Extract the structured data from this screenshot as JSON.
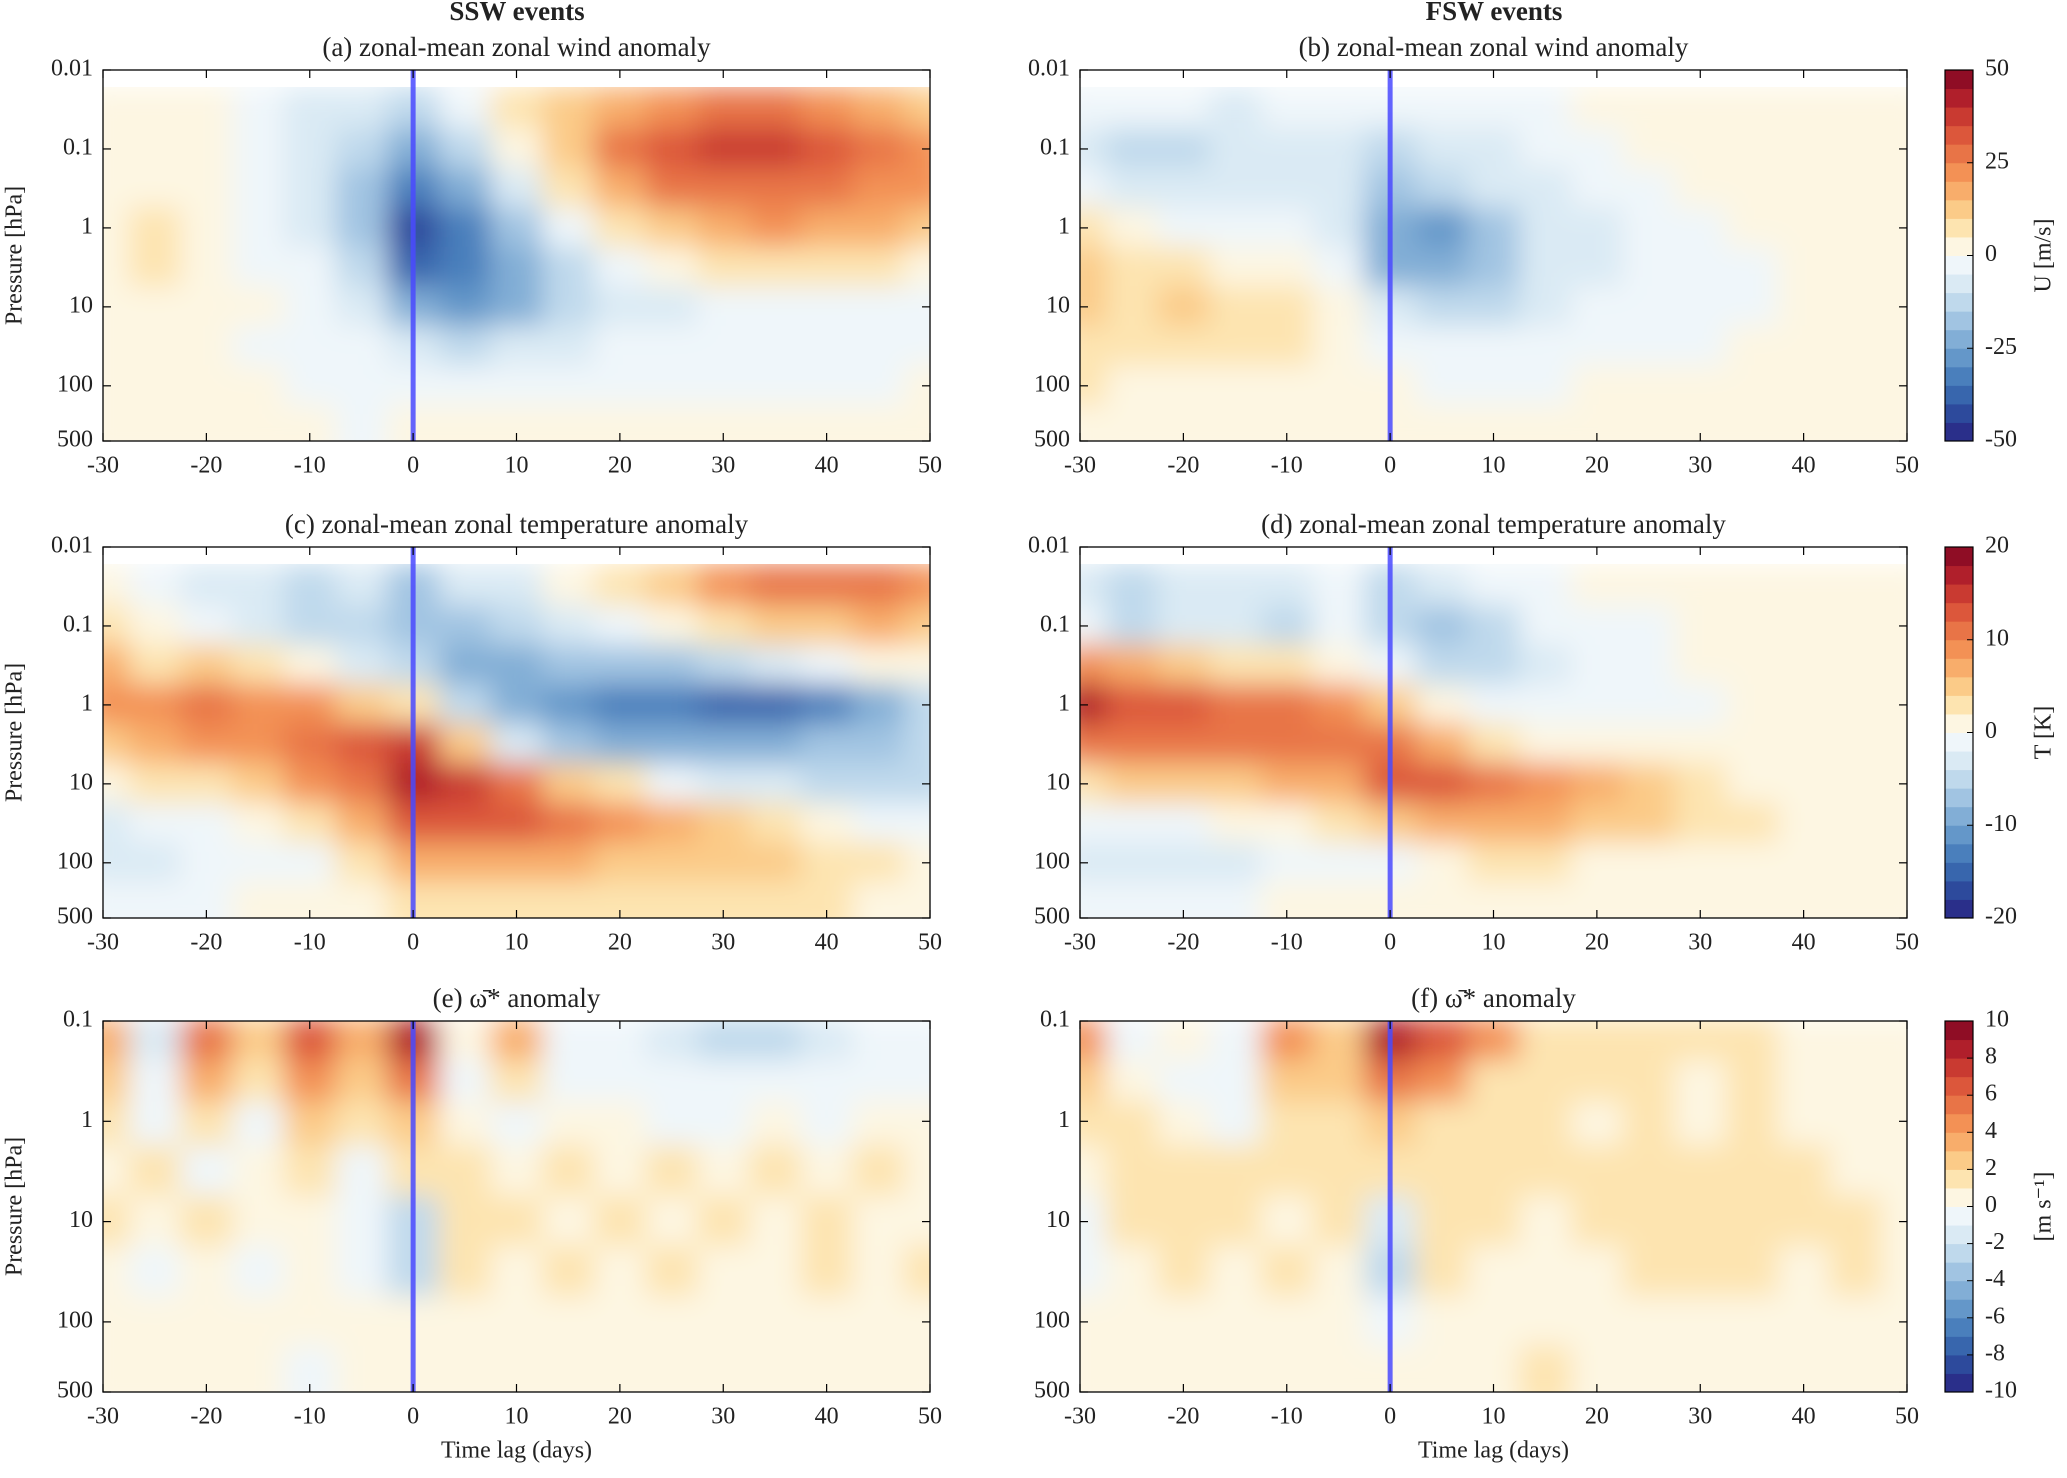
{
  "column_titles": [
    "SSW events",
    "FSW events"
  ],
  "colormap": [
    "#2a2f8a",
    "#2d4a9c",
    "#3866ad",
    "#4a7fbc",
    "#6497c9",
    "#82aed6",
    "#a1c4e2",
    "#bfd9ec",
    "#daeaf4",
    "#eff6fa",
    "#fdf6e2",
    "#fde4b0",
    "#fbcb88",
    "#f8ad6b",
    "#f39155",
    "#e87447",
    "#dc573b",
    "#c93a31",
    "#b01f2b",
    "#8f0d25"
  ],
  "chart_data": [
    {
      "type": "contour",
      "title": "(a) zonal-mean zonal wind anomaly",
      "ylabel": "Pressure [hPa]",
      "log_y": true,
      "vline": 0,
      "vline_color": "#4a4aff",
      "xlim": [
        -30,
        50
      ],
      "xticks": [
        -30,
        -20,
        -10,
        0,
        10,
        20,
        30,
        40,
        50
      ],
      "ylim": [
        500,
        0.01
      ],
      "yticks": [
        0.01,
        0.1,
        1,
        10,
        100,
        500
      ],
      "x": [
        -30,
        -25,
        -20,
        -15,
        -10,
        -5,
        0,
        5,
        10,
        15,
        20,
        25,
        30,
        35,
        40,
        45,
        50
      ],
      "y": [
        0.03,
        0.1,
        0.3,
        1,
        3,
        10,
        30,
        100,
        300
      ],
      "z": [
        [
          0,
          2,
          0,
          -5,
          -8,
          -10,
          -15,
          -5,
          5,
          12,
          18,
          22,
          25,
          25,
          22,
          15,
          12
        ],
        [
          0,
          3,
          0,
          -5,
          -10,
          -15,
          -25,
          -15,
          0,
          12,
          25,
          30,
          35,
          38,
          30,
          25,
          20
        ],
        [
          2,
          3,
          0,
          -5,
          -10,
          -20,
          -35,
          -25,
          -8,
          5,
          18,
          25,
          28,
          28,
          25,
          22,
          20
        ],
        [
          3,
          5,
          2,
          -3,
          -8,
          -20,
          -42,
          -32,
          -18,
          -5,
          5,
          12,
          18,
          20,
          18,
          15,
          12
        ],
        [
          3,
          5,
          3,
          -2,
          -5,
          -15,
          -40,
          -32,
          -22,
          -12,
          -3,
          3,
          5,
          5,
          5,
          5,
          3
        ],
        [
          2,
          4,
          2,
          0,
          -3,
          -10,
          -25,
          -28,
          -22,
          -15,
          -10,
          -8,
          -5,
          -5,
          -5,
          -3,
          -2
        ],
        [
          0,
          1,
          0,
          -1,
          -2,
          -5,
          -10,
          -12,
          -10,
          -8,
          -5,
          -3,
          -3,
          -3,
          -3,
          -2,
          -2
        ],
        [
          0,
          0,
          0,
          0,
          -1,
          -2,
          -3,
          -3,
          -3,
          -2,
          -2,
          -1,
          -1,
          -1,
          -1,
          -1,
          0
        ],
        [
          0,
          0,
          0,
          0,
          0,
          -1,
          0,
          1,
          1,
          1,
          1,
          1,
          1,
          0,
          1,
          0,
          0
        ]
      ]
    },
    {
      "type": "contour",
      "title": "(b) zonal-mean zonal wind anomaly",
      "log_y": true,
      "vline": 0,
      "vline_color": "#4a4aff",
      "xlim": [
        -30,
        50
      ],
      "xticks": [
        -30,
        -20,
        -10,
        0,
        10,
        20,
        30,
        40,
        50
      ],
      "ylim": [
        500,
        0.01
      ],
      "yticks": [
        0.01,
        0.1,
        1,
        10,
        100,
        500
      ],
      "x": [
        -30,
        -25,
        -20,
        -15,
        -10,
        -5,
        0,
        5,
        10,
        15,
        20,
        25,
        30,
        35,
        40,
        45,
        50
      ],
      "y": [
        0.03,
        0.1,
        0.3,
        1,
        3,
        10,
        30,
        100,
        300
      ],
      "z": [
        [
          -5,
          -5,
          -5,
          -8,
          -5,
          -5,
          -5,
          -3,
          -2,
          -2,
          0,
          2,
          2,
          2,
          2,
          2,
          2
        ],
        [
          -8,
          -12,
          -12,
          -10,
          -8,
          -10,
          -12,
          -10,
          -8,
          -5,
          -3,
          0,
          2,
          2,
          2,
          2,
          2
        ],
        [
          -5,
          -10,
          -10,
          -8,
          -8,
          -10,
          -18,
          -15,
          -10,
          -8,
          -5,
          -2,
          0,
          2,
          2,
          2,
          2
        ],
        [
          5,
          0,
          -2,
          -3,
          -5,
          -10,
          -25,
          -28,
          -18,
          -10,
          -8,
          -5,
          -3,
          0,
          1,
          1,
          1
        ],
        [
          10,
          5,
          5,
          3,
          0,
          -5,
          -22,
          -25,
          -18,
          -10,
          -8,
          -5,
          -3,
          -1,
          0,
          0,
          0
        ],
        [
          12,
          8,
          12,
          8,
          5,
          3,
          -10,
          -15,
          -12,
          -8,
          -5,
          -5,
          -3,
          -1,
          0,
          0,
          0
        ],
        [
          8,
          6,
          6,
          5,
          5,
          3,
          -3,
          -5,
          -5,
          -3,
          -3,
          -2,
          -1,
          0,
          0,
          0,
          0
        ],
        [
          5,
          4,
          4,
          3,
          3,
          2,
          0,
          -1,
          -1,
          -1,
          0,
          0,
          0,
          0,
          0,
          0,
          0
        ],
        [
          2,
          2,
          1,
          1,
          1,
          1,
          0,
          0,
          1,
          1,
          1,
          1,
          0,
          1,
          0,
          1,
          0
        ]
      ],
      "colorbar": {
        "label": "U [m/s]",
        "lim": [
          -50,
          50
        ],
        "ticks": [
          -50,
          -25,
          0,
          25,
          50
        ]
      }
    },
    {
      "type": "contour",
      "title": "(c) zonal-mean zonal temperature anomaly",
      "ylabel": "Pressure [hPa]",
      "log_y": true,
      "vline": 0,
      "vline_color": "#4a4aff",
      "xlim": [
        -30,
        50
      ],
      "xticks": [
        -30,
        -20,
        -10,
        0,
        10,
        20,
        30,
        40,
        50
      ],
      "ylim": [
        500,
        0.01
      ],
      "yticks": [
        0.01,
        0.1,
        1,
        10,
        100,
        500
      ],
      "x": [
        -30,
        -25,
        -20,
        -15,
        -10,
        -5,
        0,
        5,
        10,
        15,
        20,
        25,
        30,
        35,
        40,
        45,
        50
      ],
      "y": [
        0.03,
        0.1,
        0.3,
        1,
        3,
        10,
        30,
        100,
        300
      ],
      "z": [
        [
          0,
          -2,
          -3,
          -3,
          -5,
          -3,
          -8,
          -3,
          -3,
          0,
          2,
          5,
          8,
          10,
          10,
          10,
          8
        ],
        [
          3,
          0,
          -2,
          -3,
          -5,
          -5,
          -8,
          -8,
          -5,
          -3,
          -2,
          0,
          2,
          4,
          5,
          6,
          5
        ],
        [
          6,
          3,
          5,
          2,
          0,
          -3,
          -5,
          -10,
          -10,
          -8,
          -8,
          -7,
          -5,
          -3,
          -2,
          0,
          1
        ],
        [
          8,
          8,
          10,
          9,
          8,
          5,
          2,
          -5,
          -10,
          -12,
          -14,
          -14,
          -16,
          -16,
          -13,
          -10,
          -5
        ],
        [
          5,
          6,
          8,
          8,
          10,
          12,
          14,
          5,
          -3,
          -8,
          -10,
          -10,
          -10,
          -10,
          -8,
          -8,
          -6
        ],
        [
          0,
          2,
          3,
          5,
          8,
          10,
          16,
          14,
          10,
          5,
          2,
          -2,
          -3,
          -4,
          -5,
          -5,
          -5
        ],
        [
          -3,
          -2,
          -2,
          0,
          3,
          6,
          12,
          12,
          12,
          10,
          8,
          6,
          4,
          2,
          0,
          -1,
          -2
        ],
        [
          -3,
          -3,
          -2,
          -2,
          -1,
          2,
          6,
          7,
          7,
          6,
          5,
          5,
          4,
          4,
          3,
          2,
          0
        ],
        [
          -2,
          -2,
          -1,
          0,
          0,
          1,
          2,
          3,
          3,
          3,
          3,
          3,
          2,
          2,
          2,
          1,
          0
        ]
      ]
    },
    {
      "type": "contour",
      "title": "(d) zonal-mean zonal temperature anomaly",
      "log_y": true,
      "vline": 0,
      "vline_color": "#4a4aff",
      "xlim": [
        -30,
        50
      ],
      "xticks": [
        -30,
        -20,
        -10,
        0,
        10,
        20,
        30,
        40,
        50
      ],
      "ylim": [
        500,
        0.01
      ],
      "yticks": [
        0.01,
        0.1,
        1,
        10,
        100,
        500
      ],
      "x": [
        -30,
        -25,
        -20,
        -15,
        -10,
        -5,
        0,
        5,
        10,
        15,
        20,
        25,
        30,
        35,
        40,
        45,
        50
      ],
      "y": [
        0.03,
        0.1,
        0.3,
        1,
        3,
        10,
        30,
        100,
        300
      ],
      "z": [
        [
          -3,
          -5,
          -3,
          -3,
          -3,
          -2,
          -5,
          -3,
          -2,
          -1,
          0,
          0,
          0,
          0,
          0,
          0,
          1
        ],
        [
          -2,
          -5,
          -3,
          -3,
          -5,
          -2,
          -5,
          -8,
          -5,
          -2,
          -1,
          -1,
          0,
          0,
          0,
          0,
          0
        ],
        [
          8,
          6,
          4,
          2,
          2,
          0,
          -2,
          -5,
          -5,
          -3,
          -2,
          -1,
          0,
          0,
          0,
          0,
          0
        ],
        [
          16,
          12,
          12,
          11,
          10,
          8,
          5,
          0,
          -2,
          -2,
          -1,
          -1,
          -1,
          0,
          0,
          0,
          0
        ],
        [
          10,
          10,
          10,
          10,
          10,
          10,
          10,
          6,
          2,
          0,
          0,
          0,
          0,
          0,
          0,
          0,
          0
        ],
        [
          2,
          4,
          5,
          5,
          6,
          7,
          12,
          12,
          10,
          8,
          6,
          4,
          2,
          1,
          0,
          0,
          0
        ],
        [
          -2,
          -2,
          -1,
          0,
          1,
          2,
          5,
          6,
          6,
          6,
          5,
          4,
          3,
          2,
          0,
          0,
          0
        ],
        [
          -3,
          -3,
          -4,
          -3,
          -2,
          -2,
          -1,
          1,
          2,
          2,
          1,
          1,
          0,
          0,
          0,
          0,
          0
        ],
        [
          -1,
          -1,
          -1,
          -1,
          0,
          0,
          0,
          0,
          0,
          0,
          0,
          0,
          0,
          0,
          0,
          0,
          0
        ]
      ],
      "colorbar": {
        "label": "T [K]",
        "lim": [
          -20,
          20
        ],
        "ticks": [
          -20,
          -10,
          0,
          10,
          20
        ]
      }
    },
    {
      "type": "contour",
      "title": "(e) ω̄* anomaly",
      "xlabel": "Time lag (days)",
      "ylabel": "Pressure [hPa]",
      "log_y": true,
      "vline": 0,
      "vline_color": "#4a4aff",
      "xlim": [
        -30,
        50
      ],
      "xticks": [
        -30,
        -20,
        -10,
        0,
        10,
        20,
        30,
        40,
        50
      ],
      "ylim": [
        500,
        0.1
      ],
      "yticks": [
        0.1,
        1,
        10,
        100,
        500
      ],
      "x": [
        -30,
        -25,
        -20,
        -15,
        -10,
        -5,
        0,
        5,
        10,
        15,
        20,
        25,
        30,
        35,
        40,
        45,
        50
      ],
      "y": [
        0.15,
        0.4,
        1,
        3,
        10,
        30,
        100,
        300
      ],
      "z": [
        [
          3,
          -2,
          5,
          2,
          6,
          3,
          8,
          0,
          3,
          -1,
          -1,
          -2,
          -3,
          -3,
          -2,
          -1,
          -1
        ],
        [
          2,
          -1,
          3,
          1,
          4,
          2,
          5,
          -1,
          1,
          -1,
          -1,
          -1,
          -1,
          -1,
          -1,
          -1,
          -1
        ],
        [
          1,
          -1,
          1,
          -1,
          2,
          1,
          2,
          0,
          -1,
          0,
          0,
          -1,
          -1,
          0,
          -1,
          0,
          0
        ],
        [
          0,
          1,
          -1,
          0,
          1,
          -1,
          1,
          1,
          0,
          1,
          0,
          1,
          0,
          1,
          0,
          1,
          0
        ],
        [
          1,
          0,
          1,
          0,
          0,
          -1,
          -3,
          1,
          1,
          0,
          1,
          0,
          1,
          0,
          1,
          0,
          0
        ],
        [
          0,
          -1,
          0,
          -1,
          0,
          -1,
          -3,
          1,
          0,
          1,
          0,
          1,
          0,
          0,
          1,
          0,
          1
        ],
        [
          0,
          0,
          0,
          0,
          0,
          0,
          0,
          0,
          0,
          0,
          0,
          0,
          0,
          0,
          0,
          0,
          0
        ],
        [
          0,
          0,
          0,
          0,
          -1,
          0,
          0,
          0,
          0,
          0,
          0,
          0,
          0,
          0,
          0,
          0,
          0
        ]
      ]
    },
    {
      "type": "contour",
      "title": "(f) ω̄* anomaly",
      "xlabel": "Time lag (days)",
      "log_y": true,
      "vline": 0,
      "vline_color": "#4a4aff",
      "xlim": [
        -30,
        50
      ],
      "xticks": [
        -30,
        -20,
        -10,
        0,
        10,
        20,
        30,
        40,
        50
      ],
      "ylim": [
        500,
        0.1
      ],
      "yticks": [
        0.1,
        1,
        10,
        100,
        500
      ],
      "x": [
        -30,
        -25,
        -20,
        -15,
        -10,
        -5,
        0,
        5,
        10,
        15,
        20,
        25,
        30,
        35,
        40,
        45,
        50
      ],
      "y": [
        0.15,
        0.4,
        1,
        3,
        10,
        30,
        100,
        300
      ],
      "z": [
        [
          4,
          -1,
          0,
          -1,
          4,
          2,
          8,
          6,
          4,
          1,
          1,
          1,
          1,
          1,
          0,
          0,
          0
        ],
        [
          2,
          0,
          -1,
          -1,
          2,
          2,
          5,
          4,
          1,
          1,
          1,
          1,
          0,
          1,
          0,
          0,
          0
        ],
        [
          1,
          1,
          0,
          -1,
          1,
          1,
          2,
          1,
          1,
          1,
          0,
          1,
          0,
          1,
          0,
          0,
          0
        ],
        [
          0,
          1,
          1,
          1,
          1,
          1,
          1,
          1,
          1,
          1,
          1,
          1,
          1,
          1,
          1,
          0,
          0
        ],
        [
          -1,
          1,
          1,
          1,
          0,
          1,
          -2,
          1,
          1,
          0,
          1,
          1,
          1,
          1,
          1,
          1,
          0
        ],
        [
          -1,
          0,
          1,
          0,
          1,
          0,
          -3,
          1,
          0,
          0,
          0,
          1,
          1,
          1,
          0,
          1,
          0
        ],
        [
          0,
          0,
          0,
          0,
          0,
          0,
          -1,
          0,
          0,
          0,
          0,
          0,
          0,
          0,
          0,
          0,
          0
        ],
        [
          0,
          0,
          0,
          0,
          0,
          0,
          0,
          0,
          0,
          1,
          0,
          0,
          0,
          0,
          0,
          0,
          0
        ]
      ],
      "colorbar": {
        "label": "[m s⁻¹]",
        "lim": [
          -10,
          10
        ],
        "ticks": [
          -10,
          -8,
          -6,
          -4,
          -2,
          0,
          2,
          4,
          6,
          8,
          10
        ]
      }
    }
  ]
}
